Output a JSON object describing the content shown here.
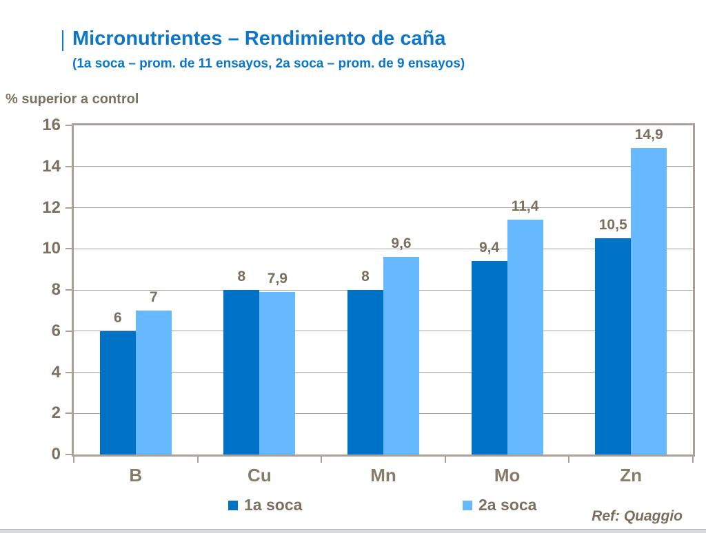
{
  "slide": {
    "title": "Micronutrientes – Rendimiento de caña",
    "subtitle": "(1a soca – prom. de 11 ensayos, 2a soca – prom. de 9 ensayos)",
    "y_axis_title": "% superior a control",
    "footnote": "Ref: Quaggio"
  },
  "colors": {
    "title_blue": "#0D76C6",
    "axis_text": "#7C7061",
    "data_label_text": "#7A6E5F",
    "category_text": "#877B6A",
    "plot_border": "#AAA096",
    "gridline": "#A3A3A3",
    "series_1a_soca": "#0072C6",
    "series_2a_soca": "#66B9FF",
    "footer_strip": "#D8DADB"
  },
  "chart_data": {
    "type": "bar",
    "title": "Micronutrientes – Rendimiento de caña",
    "subtitle": "(1a soca – prom. de 11 ensayos, 2a soca – prom. de 9 ensayos)",
    "categories": [
      "B",
      "Cu",
      "Mn",
      "Mo",
      "Zn"
    ],
    "series": [
      {
        "name": "1a soca",
        "color": "#0072C6",
        "values": [
          6,
          8,
          8,
          9.4,
          10.5
        ],
        "labels": [
          "6",
          "8",
          "8",
          "9,4",
          "10,5"
        ]
      },
      {
        "name": "2a soca",
        "color": "#66B9FF",
        "values": [
          7,
          7.9,
          9.6,
          11.4,
          14.9
        ],
        "labels": [
          "7",
          "7,9",
          "9,6",
          "11,4",
          "14,9"
        ]
      }
    ],
    "xlabel": "",
    "ylabel": "% superior a control",
    "ylim": [
      0,
      16
    ],
    "yticks": [
      0,
      2,
      4,
      6,
      8,
      10,
      12,
      14,
      16
    ],
    "grid": true,
    "legend_position": "bottom",
    "decimal_separator": ",",
    "annotations": [
      "Ref: Quaggio"
    ]
  }
}
